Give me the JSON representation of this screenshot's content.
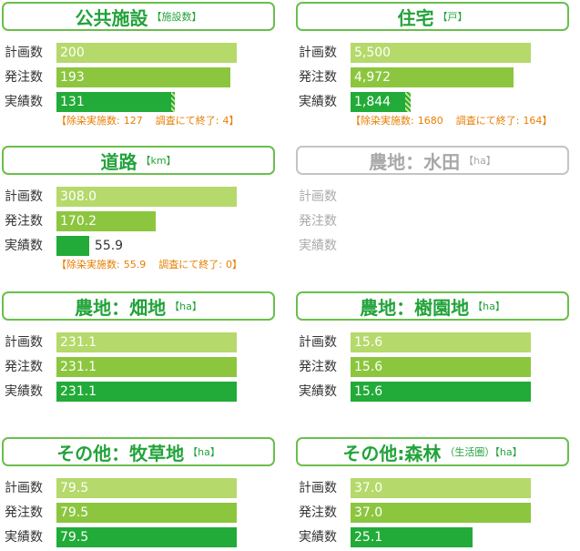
{
  "chart_data": [
    {
      "type": "bar",
      "title": "公共施設",
      "unit": "【施設数】",
      "categories": [
        "計画数",
        "発注数",
        "実績数"
      ],
      "values": [
        200,
        193,
        131
      ],
      "value_labels": [
        "200",
        "193",
        "131"
      ],
      "colors": [
        "#b5d96a",
        "#8cc63f",
        "#22ab38"
      ],
      "active": true,
      "note": {
        "prefix": "【除染実施数:",
        "done": 127,
        "sep": "調査にて終了:",
        "ended": 4,
        "suffix": "】"
      }
    },
    {
      "type": "bar",
      "title": "住宅",
      "unit": "【戸】",
      "categories": [
        "計画数",
        "発注数",
        "実績数"
      ],
      "values": [
        5500,
        4972,
        1844
      ],
      "value_labels": [
        "5,500",
        "4,972",
        "1,844"
      ],
      "colors": [
        "#b5d96a",
        "#8cc63f",
        "#22ab38"
      ],
      "active": true,
      "note": {
        "prefix": "【除染実施数:",
        "done": 1680,
        "sep": "調査にて終了:",
        "ended": 164,
        "suffix": "】"
      }
    },
    {
      "type": "bar",
      "title": "道路",
      "unit": "【km】",
      "categories": [
        "計画数",
        "発注数",
        "実績数"
      ],
      "values": [
        308.0,
        170.2,
        55.9
      ],
      "value_labels": [
        "308.0",
        "170.2",
        "55.9"
      ],
      "colors": [
        "#b5d96a",
        "#8cc63f",
        "#22ab38"
      ],
      "active": true,
      "note": {
        "prefix": "【除染実施数:",
        "done": 55.9,
        "sep": "調査にて終了:",
        "ended": 0,
        "suffix": "】"
      }
    },
    {
      "type": "bar",
      "title": "農地：水田",
      "unit": "【ha】",
      "categories": [
        "計画数",
        "発注数",
        "実績数"
      ],
      "values": [
        null,
        null,
        null
      ],
      "colors": [
        "#b5d96a",
        "#8cc63f",
        "#22ab38"
      ],
      "active": false
    },
    {
      "type": "bar",
      "title": "農地：畑地",
      "unit": "【ha】",
      "categories": [
        "計画数",
        "発注数",
        "実績数"
      ],
      "values": [
        231.1,
        231.1,
        231.1
      ],
      "value_labels": [
        "231.1",
        "231.1",
        "231.1"
      ],
      "colors": [
        "#b5d96a",
        "#8cc63f",
        "#22ab38"
      ],
      "active": true
    },
    {
      "type": "bar",
      "title": "農地：樹園地",
      "unit": "【ha】",
      "categories": [
        "計画数",
        "発注数",
        "実績数"
      ],
      "values": [
        15.6,
        15.6,
        15.6
      ],
      "value_labels": [
        "15.6",
        "15.6",
        "15.6"
      ],
      "colors": [
        "#b5d96a",
        "#8cc63f",
        "#22ab38"
      ],
      "active": true
    },
    {
      "type": "bar",
      "title": "その他：牧草地",
      "unit": "【ha】",
      "categories": [
        "計画数",
        "発注数",
        "実績数"
      ],
      "values": [
        79.5,
        79.5,
        79.5
      ],
      "value_labels": [
        "79.5",
        "79.5",
        "79.5"
      ],
      "colors": [
        "#b5d96a",
        "#8cc63f",
        "#22ab38"
      ],
      "active": true
    },
    {
      "type": "bar",
      "title": "その他:森林",
      "unit": "（生活圏）【ha】",
      "categories": [
        "計画数",
        "発注数",
        "実績数"
      ],
      "values": [
        37.0,
        37.0,
        25.1
      ],
      "value_labels": [
        "37.0",
        "37.0",
        "25.1"
      ],
      "colors": [
        "#b5d96a",
        "#8cc63f",
        "#22ab38"
      ],
      "active": true
    }
  ]
}
